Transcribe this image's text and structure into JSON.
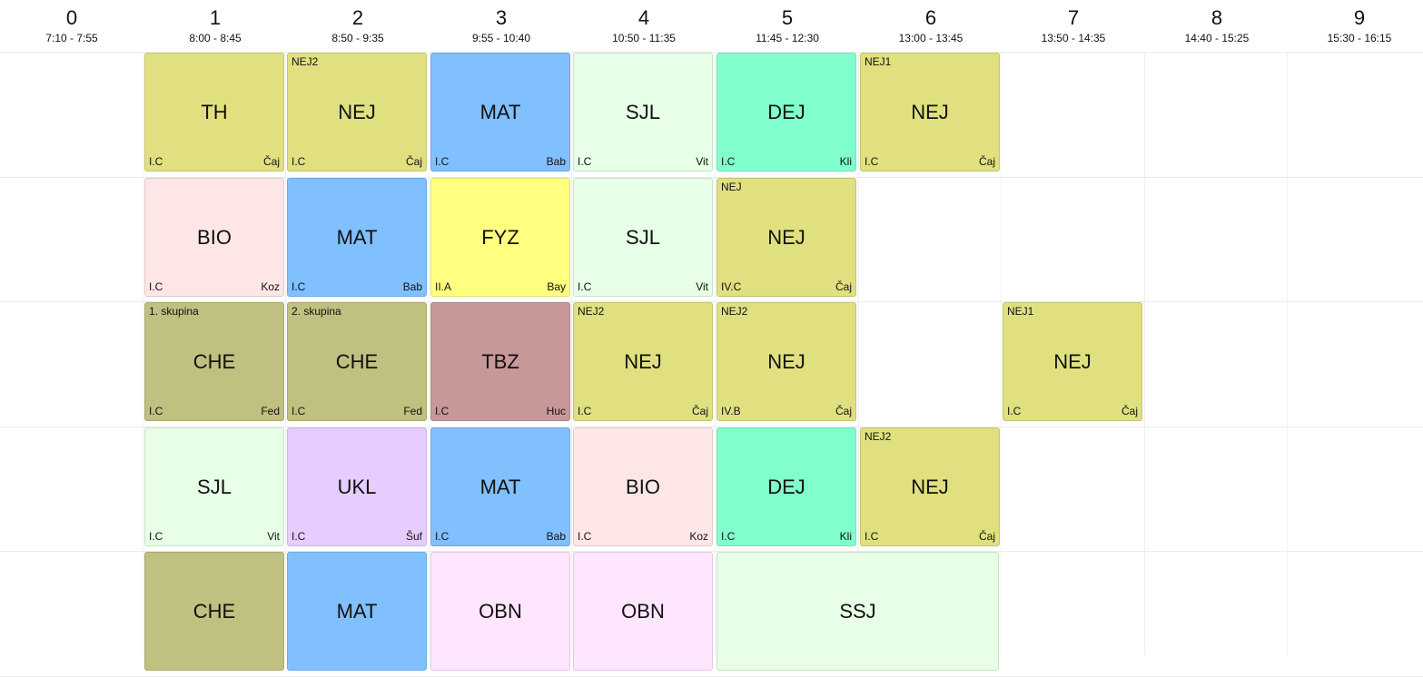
{
  "periods": [
    {
      "num": "0",
      "time": "7:10 - 7:55"
    },
    {
      "num": "1",
      "time": "8:00 - 8:45"
    },
    {
      "num": "2",
      "time": "8:50 - 9:35"
    },
    {
      "num": "3",
      "time": "9:55 - 10:40"
    },
    {
      "num": "4",
      "time": "10:50 - 11:35"
    },
    {
      "num": "5",
      "time": "11:45 - 12:30"
    },
    {
      "num": "6",
      "time": "13:00 - 13:45"
    },
    {
      "num": "7",
      "time": "13:50 - 14:35"
    },
    {
      "num": "8",
      "time": "14:40 - 15:25"
    },
    {
      "num": "9",
      "time": "15:30 - 16:15"
    }
  ],
  "days": [
    {
      "lessons": [
        {
          "period": 1,
          "span": 1,
          "subject": "TH",
          "group": "",
          "class": "I.C",
          "teacher": "Čaj",
          "color": "#e0e080"
        },
        {
          "period": 2,
          "span": 1,
          "subject": "NEJ",
          "group": "NEJ2",
          "class": "I.C",
          "teacher": "Čaj",
          "color": "#e0e080"
        },
        {
          "period": 3,
          "span": 1,
          "subject": "MAT",
          "group": "",
          "class": "I.C",
          "teacher": "Bab",
          "color": "#80c0ff"
        },
        {
          "period": 4,
          "span": 1,
          "subject": "SJL",
          "group": "",
          "class": "I.C",
          "teacher": "Vit",
          "color": "#e6ffe6"
        },
        {
          "period": 5,
          "span": 1,
          "subject": "DEJ",
          "group": "",
          "class": "I.C",
          "teacher": "Kli",
          "color": "#80ffcc"
        },
        {
          "period": 6,
          "span": 1,
          "subject": "NEJ",
          "group": "NEJ1",
          "class": "I.C",
          "teacher": "Čaj",
          "color": "#e0e080"
        }
      ]
    },
    {
      "lessons": [
        {
          "period": 1,
          "span": 1,
          "subject": "BIO",
          "group": "",
          "class": "I.C",
          "teacher": "Koz",
          "color": "#ffe6e6"
        },
        {
          "period": 2,
          "span": 1,
          "subject": "MAT",
          "group": "",
          "class": "I.C",
          "teacher": "Bab",
          "color": "#80c0ff"
        },
        {
          "period": 3,
          "span": 1,
          "subject": "FYZ",
          "group": "",
          "class": "II.A",
          "teacher": "Bay",
          "color": "#ffff80"
        },
        {
          "period": 4,
          "span": 1,
          "subject": "SJL",
          "group": "",
          "class": "I.C",
          "teacher": "Vit",
          "color": "#e6ffe6"
        },
        {
          "period": 5,
          "span": 1,
          "subject": "NEJ",
          "group": "NEJ",
          "class": "IV.C",
          "teacher": "Čaj",
          "color": "#e0e080"
        }
      ]
    },
    {
      "lessons": [
        {
          "period": 1,
          "span": 1,
          "subject": "CHE",
          "group": "1. skupina",
          "class": "I.C",
          "teacher": "Fed",
          "color": "#c0c080"
        },
        {
          "period": 2,
          "span": 1,
          "subject": "CHE",
          "group": "2. skupina",
          "class": "I.C",
          "teacher": "Fed",
          "color": "#c0c080"
        },
        {
          "period": 3,
          "span": 1,
          "subject": "TBZ",
          "group": "",
          "class": "I.C",
          "teacher": "Huc",
          "color": "#c89898"
        },
        {
          "period": 4,
          "span": 1,
          "subject": "NEJ",
          "group": "NEJ2",
          "class": "I.C",
          "teacher": "Čaj",
          "color": "#e0e080"
        },
        {
          "period": 5,
          "span": 1,
          "subject": "NEJ",
          "group": "NEJ2",
          "class": "IV.B",
          "teacher": "Čaj",
          "color": "#e0e080"
        },
        {
          "period": 7,
          "span": 1,
          "subject": "NEJ",
          "group": "NEJ1",
          "class": "I.C",
          "teacher": "Čaj",
          "color": "#e0e080"
        }
      ]
    },
    {
      "lessons": [
        {
          "period": 1,
          "span": 1,
          "subject": "SJL",
          "group": "",
          "class": "I.C",
          "teacher": "Vit",
          "color": "#e6ffe6"
        },
        {
          "period": 2,
          "span": 1,
          "subject": "UKL",
          "group": "",
          "class": "I.C",
          "teacher": "Šuf",
          "color": "#e6ccff"
        },
        {
          "period": 3,
          "span": 1,
          "subject": "MAT",
          "group": "",
          "class": "I.C",
          "teacher": "Bab",
          "color": "#80c0ff"
        },
        {
          "period": 4,
          "span": 1,
          "subject": "BIO",
          "group": "",
          "class": "I.C",
          "teacher": "Koz",
          "color": "#ffe6e6"
        },
        {
          "period": 5,
          "span": 1,
          "subject": "DEJ",
          "group": "",
          "class": "I.C",
          "teacher": "Kli",
          "color": "#80ffcc"
        },
        {
          "period": 6,
          "span": 1,
          "subject": "NEJ",
          "group": "NEJ2",
          "class": "I.C",
          "teacher": "Čaj",
          "color": "#e0e080"
        }
      ]
    },
    {
      "lessons": [
        {
          "period": 1,
          "span": 1,
          "subject": "CHE",
          "group": "",
          "class": "",
          "teacher": "",
          "color": "#c0c080"
        },
        {
          "period": 2,
          "span": 1,
          "subject": "MAT",
          "group": "",
          "class": "",
          "teacher": "",
          "color": "#80c0ff"
        },
        {
          "period": 3,
          "span": 1,
          "subject": "OBN",
          "group": "",
          "class": "",
          "teacher": "",
          "color": "#ffe6ff"
        },
        {
          "period": 4,
          "span": 1,
          "subject": "OBN",
          "group": "",
          "class": "",
          "teacher": "",
          "color": "#ffe6ff"
        },
        {
          "period": 5,
          "span": 2,
          "subject": "SSJ",
          "group": "",
          "class": "",
          "teacher": "",
          "color": "#e6ffe6"
        }
      ]
    }
  ]
}
